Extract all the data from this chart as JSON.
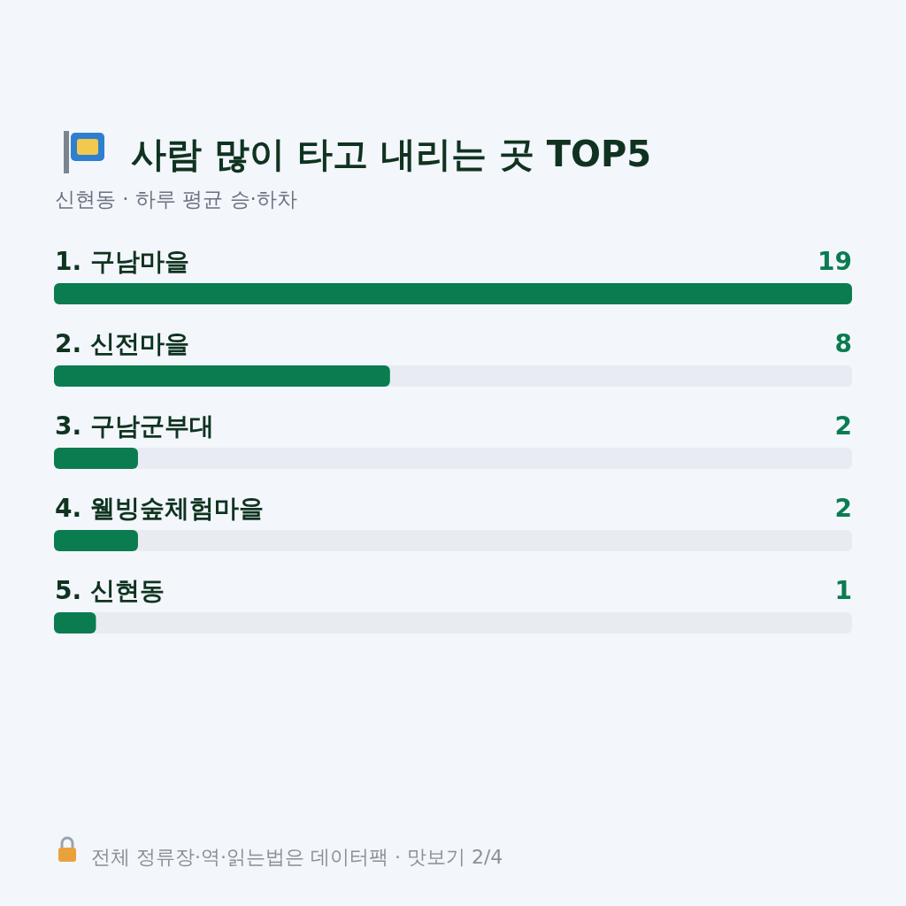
{
  "chart_data": {
    "type": "bar",
    "orientation": "horizontal",
    "title": "사람 많이 타고 내리는 곳 TOP5",
    "subtitle": "신현동 · 하루 평균 승·하차",
    "categories": [
      "1. 구남마을",
      "2. 신전마을",
      "3. 구남군부대",
      "4. 웰빙숲체험마을",
      "5. 신현동"
    ],
    "values": [
      19,
      8,
      2,
      2,
      1
    ],
    "color": "#0a7c50",
    "data_labels": true,
    "annotations": [
      "전체 정류장·역·읽는법은 데이터팩 · 맛보기 2/4"
    ]
  }
}
